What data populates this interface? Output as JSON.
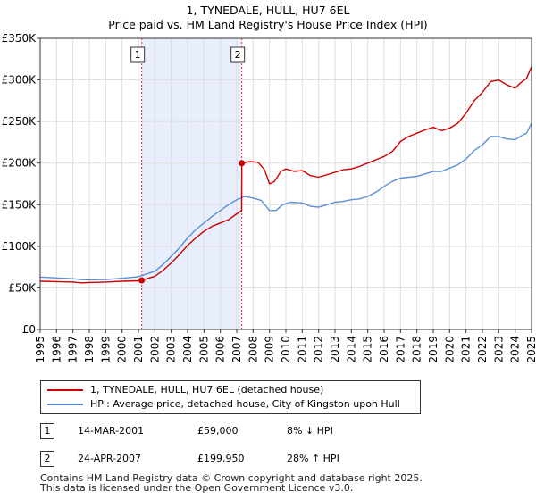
{
  "header": {
    "title": "1, TYNEDALE, HULL, HU7 6EL",
    "subtitle": "Price paid vs. HM Land Registry's House Price Index (HPI)"
  },
  "chart_data": {
    "type": "line",
    "title": "1, TYNEDALE, HULL, HU7 6EL",
    "subtitle": "Price paid vs. HM Land Registry's House Price Index (HPI)",
    "xlabel": "",
    "ylabel": "",
    "xlim": [
      1995,
      2025
    ],
    "ylim": [
      0,
      350000
    ],
    "y_ticks": [
      0,
      50000,
      100000,
      150000,
      200000,
      250000,
      300000,
      350000
    ],
    "y_tick_labels": [
      "£0",
      "£50K",
      "£100K",
      "£150K",
      "£200K",
      "£250K",
      "£300K",
      "£350K"
    ],
    "x_ticks": [
      1995,
      1996,
      1997,
      1998,
      1999,
      2000,
      2001,
      2002,
      2003,
      2004,
      2005,
      2006,
      2007,
      2008,
      2009,
      2010,
      2011,
      2012,
      2013,
      2014,
      2015,
      2016,
      2017,
      2018,
      2019,
      2020,
      2021,
      2022,
      2023,
      2024,
      2025
    ],
    "x_tick_labels": [
      "1995",
      "1996",
      "1997",
      "1998",
      "1999",
      "2000",
      "2001",
      "2002",
      "2003",
      "2004",
      "2005",
      "2006",
      "2007",
      "2008",
      "2009",
      "2010",
      "2011",
      "2012",
      "2013",
      "2014",
      "2015",
      "2016",
      "2017",
      "2018",
      "2019",
      "2020",
      "2021",
      "2022",
      "2023",
      "2024",
      "2025"
    ],
    "grid": true,
    "shaded_region": {
      "from": 2001.2,
      "to": 2007.31,
      "color": "#e8eefb"
    },
    "series": [
      {
        "name": "1, TYNEDALE, HULL, HU7 6EL (detached house)",
        "color": "#cc0000",
        "x": [
          1995,
          1996,
          1997,
          1997.5,
          1998,
          1999,
          2000,
          2001,
          2001.2,
          2002,
          2002.5,
          2003,
          2003.5,
          2004,
          2004.5,
          2005,
          2005.5,
          2006,
          2006.5,
          2007,
          2007.3,
          2007.31,
          2007.8,
          2008.3,
          2008.7,
          2009.0,
          2009.3,
          2009.7,
          2010,
          2010.5,
          2011,
          2011.5,
          2012,
          2012.5,
          2013,
          2013.5,
          2014,
          2014.5,
          2015,
          2015.5,
          2016,
          2016.5,
          2017,
          2017.5,
          2018,
          2018.5,
          2019,
          2019.5,
          2020,
          2020.5,
          2021,
          2021.5,
          2022,
          2022.5,
          2023,
          2023.5,
          2024,
          2024.3,
          2024.7,
          2025
        ],
        "y": [
          58000,
          57500,
          57000,
          56000,
          56500,
          57000,
          58000,
          58500,
          59000,
          64000,
          71000,
          80000,
          90000,
          101000,
          110000,
          118000,
          124000,
          128000,
          132000,
          139000,
          143000,
          199950,
          202000,
          201000,
          192000,
          175000,
          178000,
          190000,
          193000,
          190000,
          191000,
          185000,
          183000,
          186000,
          189000,
          192000,
          193000,
          196000,
          200000,
          204000,
          208000,
          214000,
          226000,
          232000,
          236000,
          240000,
          243000,
          239000,
          242000,
          248000,
          260000,
          275000,
          285000,
          298000,
          300000,
          294000,
          290000,
          296000,
          302000,
          316000
        ]
      },
      {
        "name": "HPI: Average price, detached house, City of Kingston upon Hull",
        "color": "#5b8fd6",
        "x": [
          1995,
          1996,
          1997,
          1997.5,
          1998,
          1999,
          2000,
          2001,
          2002,
          2002.5,
          2003,
          2003.5,
          2004,
          2004.5,
          2005,
          2005.5,
          2006,
          2006.5,
          2007,
          2007.5,
          2008,
          2008.5,
          2009.0,
          2009.4,
          2009.8,
          2010.3,
          2011,
          2011.5,
          2012,
          2012.5,
          2013,
          2013.5,
          2014,
          2014.5,
          2015,
          2015.5,
          2016,
          2016.5,
          2017,
          2017.5,
          2018,
          2018.5,
          2019,
          2019.5,
          2020,
          2020.5,
          2021,
          2021.5,
          2022,
          2022.5,
          2023,
          2023.5,
          2024,
          2024.3,
          2024.7,
          2025
        ],
        "y": [
          63000,
          62000,
          61000,
          60000,
          59500,
          60000,
          61500,
          63500,
          70000,
          78000,
          88000,
          98000,
          110000,
          120000,
          128000,
          136000,
          143000,
          150000,
          156000,
          160000,
          158000,
          155000,
          143000,
          143000,
          150000,
          153000,
          152000,
          148000,
          147000,
          150000,
          153000,
          154000,
          156000,
          157000,
          160000,
          165000,
          172000,
          178000,
          182000,
          183000,
          184000,
          187000,
          190000,
          190000,
          194000,
          198000,
          205000,
          215000,
          222000,
          232000,
          232000,
          229000,
          228000,
          232000,
          236000,
          248000
        ]
      }
    ],
    "sales": [
      {
        "label": "1",
        "x": 2001.2,
        "price": 59000
      },
      {
        "label": "2",
        "x": 2007.31,
        "price": 199950
      }
    ]
  },
  "legend": {
    "items": [
      {
        "label": "1, TYNEDALE, HULL, HU7 6EL (detached house)",
        "color": "#cc0000"
      },
      {
        "label": "HPI: Average price, detached house, City of Kingston upon Hull",
        "color": "#5b8fd6"
      }
    ]
  },
  "sales_table": [
    {
      "num": "1",
      "date": "14-MAR-2001",
      "price": "£59,000",
      "hpi": "8% ↓ HPI"
    },
    {
      "num": "2",
      "date": "24-APR-2007",
      "price": "£199,950",
      "hpi": "28% ↑ HPI"
    }
  ],
  "footer": {
    "line1": "Contains HM Land Registry data © Crown copyright and database right 2025.",
    "line2": "This data is licensed under the Open Government Licence v3.0."
  }
}
